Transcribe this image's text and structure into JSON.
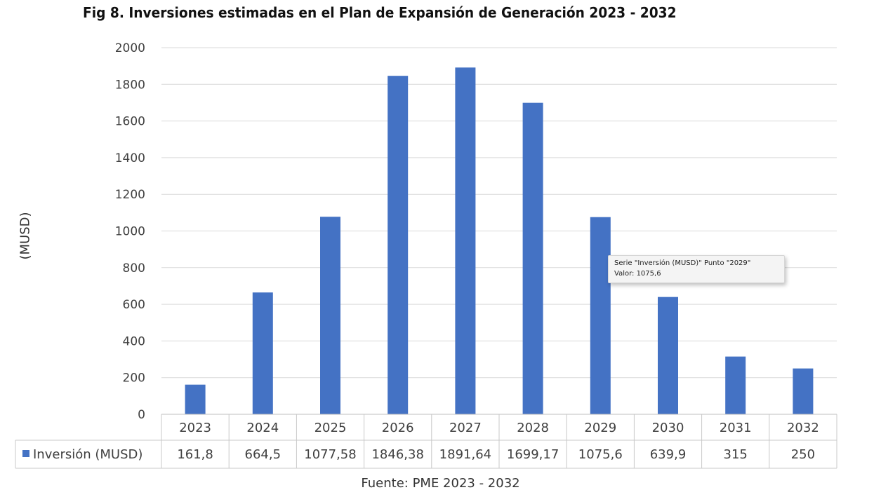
{
  "chart_data": {
    "type": "bar",
    "title": "Fig 8. Inversiones estimadas en el Plan de Expansión de Generación 2023 - 2032",
    "ylabel": "(MUSD)",
    "xlabel": "",
    "categories": [
      "2023",
      "2024",
      "2025",
      "2026",
      "2027",
      "2028",
      "2029",
      "2030",
      "2031",
      "2032"
    ],
    "series": [
      {
        "name": "Inversión (MUSD)",
        "values": [
          161.8,
          664.5,
          1077.58,
          1846.38,
          1891.64,
          1699.17,
          1075.6,
          639.9,
          315,
          250
        ],
        "labels": [
          "161,8",
          "664,5",
          "1077,58",
          "1846,38",
          "1891,64",
          "1699,17",
          "1075,6",
          "639,9",
          "315",
          "250"
        ],
        "color": "#4472c4"
      }
    ],
    "ylim": [
      0,
      2000
    ],
    "yticks": [
      "0",
      "200",
      "400",
      "600",
      "800",
      "1000",
      "1200",
      "1400",
      "1600",
      "1800",
      "2000"
    ],
    "grid": true,
    "legend": "data-table",
    "source": "Fuente: PME 2023 - 2032",
    "tooltip": {
      "line1": "Serie \"Inversión (MUSD)\" Punto \"2029\"",
      "line2": "Valor: 1075,6"
    }
  }
}
